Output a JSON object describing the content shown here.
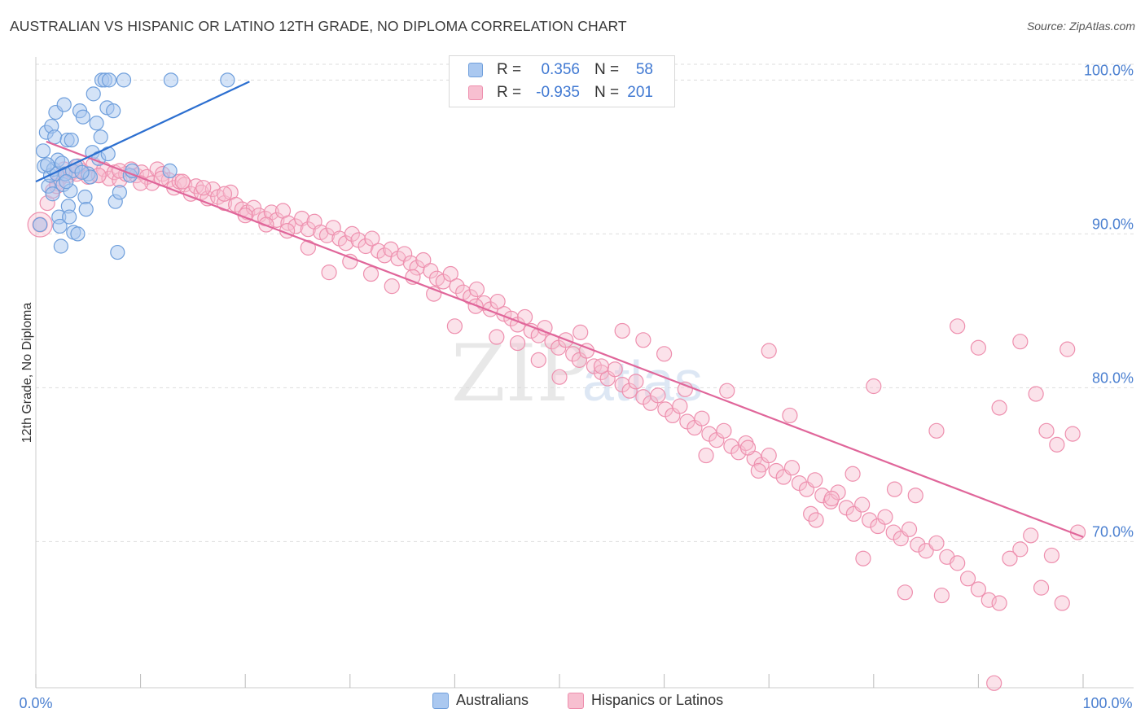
{
  "title": "AUSTRALIAN VS HISPANIC OR LATINO 12TH GRADE, NO DIPLOMA CORRELATION CHART",
  "source": "Source: ZipAtlas.com",
  "watermark": {
    "part1": "ZIP",
    "part2": "atlas"
  },
  "colors": {
    "blue_fill": "#aac8f0",
    "blue_stroke": "#6f9fdc",
    "blue_line": "#2c6fd0",
    "pink_fill": "#f7bfd0",
    "pink_stroke": "#ee8fae",
    "pink_line": "#e0669a",
    "axis_text": "#4a7fd0",
    "grid": "#dddddd"
  },
  "stats": {
    "rows": [
      {
        "series": "Australians",
        "r_label": "R =",
        "r_value": "0.356",
        "n_label": "N =",
        "n_value": "58"
      },
      {
        "series": "Hispanics or Latinos",
        "r_label": "R =",
        "r_value": "-0.935",
        "n_label": "N =",
        "n_value": "201"
      }
    ]
  },
  "legend": {
    "items": [
      "Australians",
      "Hispanics or Latinos"
    ]
  },
  "chart_data": {
    "type": "scatter",
    "title": "AUSTRALIAN VS HISPANIC OR LATINO 12TH GRADE, NO DIPLOMA CORRELATION CHART",
    "xlabel": "",
    "ylabel": "12th Grade, No Diploma",
    "xlim": [
      0,
      100
    ],
    "ylim": [
      60.5,
      101.5
    ],
    "x_tick_labels": [
      "0.0%",
      "100.0%"
    ],
    "y_ticks": [
      70,
      80,
      90,
      100
    ],
    "y_tick_labels": [
      "70.0%",
      "80.0%",
      "90.0%",
      "100.0%"
    ],
    "grid": true,
    "series": [
      {
        "name": "Australians",
        "r": 0.356,
        "n": 58,
        "trend": {
          "x": [
            0.0,
            20.4
          ],
          "y": [
            93.4,
            99.9
          ]
        },
        "points": [
          [
            0.4,
            90.6
          ],
          [
            0.7,
            95.4
          ],
          [
            0.8,
            94.4
          ],
          [
            1.0,
            96.6
          ],
          [
            1.2,
            93.1
          ],
          [
            1.4,
            93.8
          ],
          [
            1.5,
            97.0
          ],
          [
            1.6,
            92.6
          ],
          [
            1.7,
            94.2
          ],
          [
            1.8,
            96.3
          ],
          [
            1.9,
            97.9
          ],
          [
            2.0,
            93.9
          ],
          [
            2.1,
            94.8
          ],
          [
            2.2,
            91.1
          ],
          [
            2.3,
            90.5
          ],
          [
            2.4,
            89.2
          ],
          [
            2.5,
            94.6
          ],
          [
            2.6,
            93.2
          ],
          [
            2.7,
            98.4
          ],
          [
            2.8,
            93.9
          ],
          [
            3.0,
            96.1
          ],
          [
            3.1,
            91.8
          ],
          [
            3.2,
            91.1
          ],
          [
            3.3,
            92.8
          ],
          [
            3.4,
            96.1
          ],
          [
            3.5,
            94.1
          ],
          [
            3.6,
            90.1
          ],
          [
            3.8,
            94.4
          ],
          [
            4.0,
            90.0
          ],
          [
            4.2,
            98.0
          ],
          [
            4.5,
            97.6
          ],
          [
            4.7,
            92.4
          ],
          [
            4.8,
            91.6
          ],
          [
            5.0,
            93.9
          ],
          [
            5.2,
            93.7
          ],
          [
            5.4,
            95.3
          ],
          [
            5.5,
            99.1
          ],
          [
            5.8,
            97.2
          ],
          [
            6.0,
            94.9
          ],
          [
            6.3,
            100.0
          ],
          [
            6.6,
            100.0
          ],
          [
            6.8,
            98.2
          ],
          [
            6.9,
            95.2
          ],
          [
            7.0,
            100.0
          ],
          [
            7.4,
            98.0
          ],
          [
            7.6,
            92.1
          ],
          [
            7.8,
            88.8
          ],
          [
            8.0,
            92.7
          ],
          [
            8.4,
            100.0
          ],
          [
            9.0,
            93.8
          ],
          [
            9.2,
            94.1
          ],
          [
            12.8,
            94.1
          ],
          [
            12.9,
            100.0
          ],
          [
            18.3,
            100.0
          ],
          [
            2.9,
            93.4
          ],
          [
            1.1,
            94.5
          ],
          [
            4.4,
            94.0
          ],
          [
            6.2,
            96.3
          ]
        ]
      },
      {
        "name": "Hispanics or Latinos",
        "r": -0.935,
        "n": 201,
        "trend": {
          "x": [
            1.0,
            100.0
          ],
          "y": [
            96.0,
            70.3
          ]
        },
        "points": [
          [
            0.4,
            90.6
          ],
          [
            1.1,
            92.0
          ],
          [
            1.6,
            92.8
          ],
          [
            2.0,
            93.3
          ],
          [
            2.3,
            93.6
          ],
          [
            2.7,
            94.2
          ],
          [
            3.1,
            93.8
          ],
          [
            3.5,
            94.0
          ],
          [
            3.9,
            93.9
          ],
          [
            4.4,
            94.1
          ],
          [
            5.0,
            93.7
          ],
          [
            5.5,
            94.5
          ],
          [
            6.0,
            93.8
          ],
          [
            6.5,
            94.2
          ],
          [
            7.0,
            93.6
          ],
          [
            7.5,
            94.0
          ],
          [
            8.0,
            93.5
          ],
          [
            8.6,
            93.9
          ],
          [
            9.1,
            94.2
          ],
          [
            9.6,
            93.8
          ],
          [
            10.1,
            94.0
          ],
          [
            10.6,
            93.7
          ],
          [
            11.1,
            93.3
          ],
          [
            11.6,
            94.2
          ],
          [
            12.1,
            93.9
          ],
          [
            12.7,
            93.5
          ],
          [
            13.2,
            93.0
          ],
          [
            13.7,
            93.4
          ],
          [
            14.2,
            93.2
          ],
          [
            14.8,
            92.6
          ],
          [
            15.3,
            93.1
          ],
          [
            15.8,
            92.7
          ],
          [
            16.4,
            92.3
          ],
          [
            16.9,
            92.9
          ],
          [
            17.4,
            92.4
          ],
          [
            18.0,
            92.0
          ],
          [
            18.6,
            92.7
          ],
          [
            19.1,
            91.9
          ],
          [
            19.7,
            91.6
          ],
          [
            20.2,
            91.4
          ],
          [
            20.8,
            91.7
          ],
          [
            21.3,
            91.2
          ],
          [
            21.9,
            91.0
          ],
          [
            22.5,
            91.4
          ],
          [
            23.0,
            90.9
          ],
          [
            23.6,
            91.5
          ],
          [
            24.1,
            90.7
          ],
          [
            24.8,
            90.5
          ],
          [
            25.4,
            91.0
          ],
          [
            26.0,
            90.3
          ],
          [
            26.6,
            90.8
          ],
          [
            27.2,
            90.1
          ],
          [
            27.8,
            89.9
          ],
          [
            28.4,
            90.4
          ],
          [
            29.0,
            89.7
          ],
          [
            29.6,
            89.4
          ],
          [
            30.2,
            90.0
          ],
          [
            30.8,
            89.6
          ],
          [
            31.5,
            89.2
          ],
          [
            32.1,
            89.7
          ],
          [
            32.7,
            88.9
          ],
          [
            33.3,
            88.6
          ],
          [
            33.9,
            89.0
          ],
          [
            34.6,
            88.4
          ],
          [
            35.2,
            88.7
          ],
          [
            35.8,
            88.1
          ],
          [
            36.4,
            87.8
          ],
          [
            37.0,
            88.3
          ],
          [
            37.7,
            87.6
          ],
          [
            38.3,
            87.1
          ],
          [
            38.9,
            86.9
          ],
          [
            39.6,
            87.4
          ],
          [
            40.2,
            86.6
          ],
          [
            40.8,
            86.2
          ],
          [
            41.5,
            85.9
          ],
          [
            42.1,
            86.4
          ],
          [
            42.8,
            85.5
          ],
          [
            43.4,
            85.1
          ],
          [
            44.1,
            85.6
          ],
          [
            44.7,
            84.8
          ],
          [
            45.4,
            84.5
          ],
          [
            46.0,
            84.1
          ],
          [
            46.7,
            84.6
          ],
          [
            47.3,
            83.7
          ],
          [
            48.0,
            83.4
          ],
          [
            48.6,
            83.9
          ],
          [
            49.3,
            83.0
          ],
          [
            49.9,
            82.6
          ],
          [
            50.6,
            83.1
          ],
          [
            51.3,
            82.2
          ],
          [
            51.9,
            81.8
          ],
          [
            52.6,
            82.4
          ],
          [
            53.3,
            81.4
          ],
          [
            54.0,
            81.0
          ],
          [
            54.6,
            80.6
          ],
          [
            55.3,
            81.2
          ],
          [
            56.0,
            80.2
          ],
          [
            56.7,
            79.8
          ],
          [
            57.3,
            80.4
          ],
          [
            58.0,
            79.4
          ],
          [
            58.7,
            79.0
          ],
          [
            59.4,
            79.5
          ],
          [
            60.1,
            78.6
          ],
          [
            60.8,
            78.2
          ],
          [
            61.5,
            78.8
          ],
          [
            62.2,
            77.8
          ],
          [
            62.9,
            77.4
          ],
          [
            63.6,
            78.0
          ],
          [
            64.3,
            77.0
          ],
          [
            65.0,
            76.6
          ],
          [
            65.7,
            77.2
          ],
          [
            66.4,
            76.2
          ],
          [
            67.1,
            75.8
          ],
          [
            67.8,
            76.4
          ],
          [
            68.6,
            75.4
          ],
          [
            69.3,
            75.0
          ],
          [
            70.0,
            75.6
          ],
          [
            70.7,
            74.6
          ],
          [
            71.4,
            74.2
          ],
          [
            72.2,
            74.8
          ],
          [
            72.9,
            73.8
          ],
          [
            73.6,
            73.4
          ],
          [
            74.4,
            74.0
          ],
          [
            75.1,
            73.0
          ],
          [
            75.9,
            72.6
          ],
          [
            76.6,
            73.2
          ],
          [
            77.4,
            72.2
          ],
          [
            78.1,
            71.8
          ],
          [
            78.9,
            72.4
          ],
          [
            79.6,
            71.4
          ],
          [
            80.4,
            71.0
          ],
          [
            81.1,
            71.6
          ],
          [
            81.9,
            70.6
          ],
          [
            82.6,
            70.2
          ],
          [
            83.4,
            70.8
          ],
          [
            84.2,
            69.8
          ],
          [
            85.0,
            69.4
          ],
          [
            86.0,
            69.9
          ],
          [
            87.0,
            69.0
          ],
          [
            88.0,
            68.6
          ],
          [
            89.0,
            67.6
          ],
          [
            90.0,
            66.9
          ],
          [
            91.0,
            66.2
          ],
          [
            92.0,
            66.0
          ],
          [
            93.0,
            68.9
          ],
          [
            94.0,
            69.5
          ],
          [
            95.0,
            70.4
          ],
          [
            96.0,
            67.0
          ],
          [
            97.0,
            69.1
          ],
          [
            98.0,
            66.0
          ],
          [
            99.0,
            77.0
          ],
          [
            99.5,
            70.6
          ],
          [
            98.5,
            82.5
          ],
          [
            97.5,
            76.3
          ],
          [
            96.5,
            77.2
          ],
          [
            95.5,
            79.6
          ],
          [
            94.0,
            83.0
          ],
          [
            92.0,
            78.7
          ],
          [
            90.0,
            82.6
          ],
          [
            88.0,
            84.0
          ],
          [
            86.0,
            77.2
          ],
          [
            84.0,
            73.0
          ],
          [
            82.0,
            73.4
          ],
          [
            80.0,
            80.1
          ],
          [
            78.0,
            74.4
          ],
          [
            76.0,
            72.8
          ],
          [
            74.0,
            71.8
          ],
          [
            72.0,
            78.2
          ],
          [
            70.0,
            82.4
          ],
          [
            68.0,
            76.1
          ],
          [
            66.0,
            79.8
          ],
          [
            64.0,
            75.6
          ],
          [
            62.0,
            79.9
          ],
          [
            60.0,
            82.2
          ],
          [
            58.0,
            83.1
          ],
          [
            56.0,
            83.7
          ],
          [
            54.0,
            81.4
          ],
          [
            52.0,
            83.6
          ],
          [
            50.0,
            80.7
          ],
          [
            48.0,
            81.8
          ],
          [
            46.0,
            82.9
          ],
          [
            44.0,
            83.3
          ],
          [
            42.0,
            85.3
          ],
          [
            40.0,
            84.0
          ],
          [
            38.0,
            86.1
          ],
          [
            36.0,
            87.2
          ],
          [
            34.0,
            86.6
          ],
          [
            32.0,
            87.4
          ],
          [
            30.0,
            88.2
          ],
          [
            28.0,
            87.5
          ],
          [
            26.0,
            89.1
          ],
          [
            24.0,
            90.2
          ],
          [
            22.0,
            90.6
          ],
          [
            20.0,
            91.2
          ],
          [
            18.0,
            92.6
          ],
          [
            16.0,
            93.0
          ],
          [
            14.0,
            93.4
          ],
          [
            12.0,
            93.6
          ],
          [
            10.0,
            93.3
          ],
          [
            8.0,
            94.1
          ],
          [
            6.0,
            93.8
          ],
          [
            4.0,
            94.4
          ],
          [
            2.0,
            93.1
          ],
          [
            86.5,
            66.5
          ],
          [
            69.0,
            74.6
          ],
          [
            74.5,
            71.4
          ],
          [
            79.0,
            68.9
          ],
          [
            83.0,
            66.7
          ],
          [
            91.5,
            60.8
          ]
        ]
      }
    ]
  }
}
